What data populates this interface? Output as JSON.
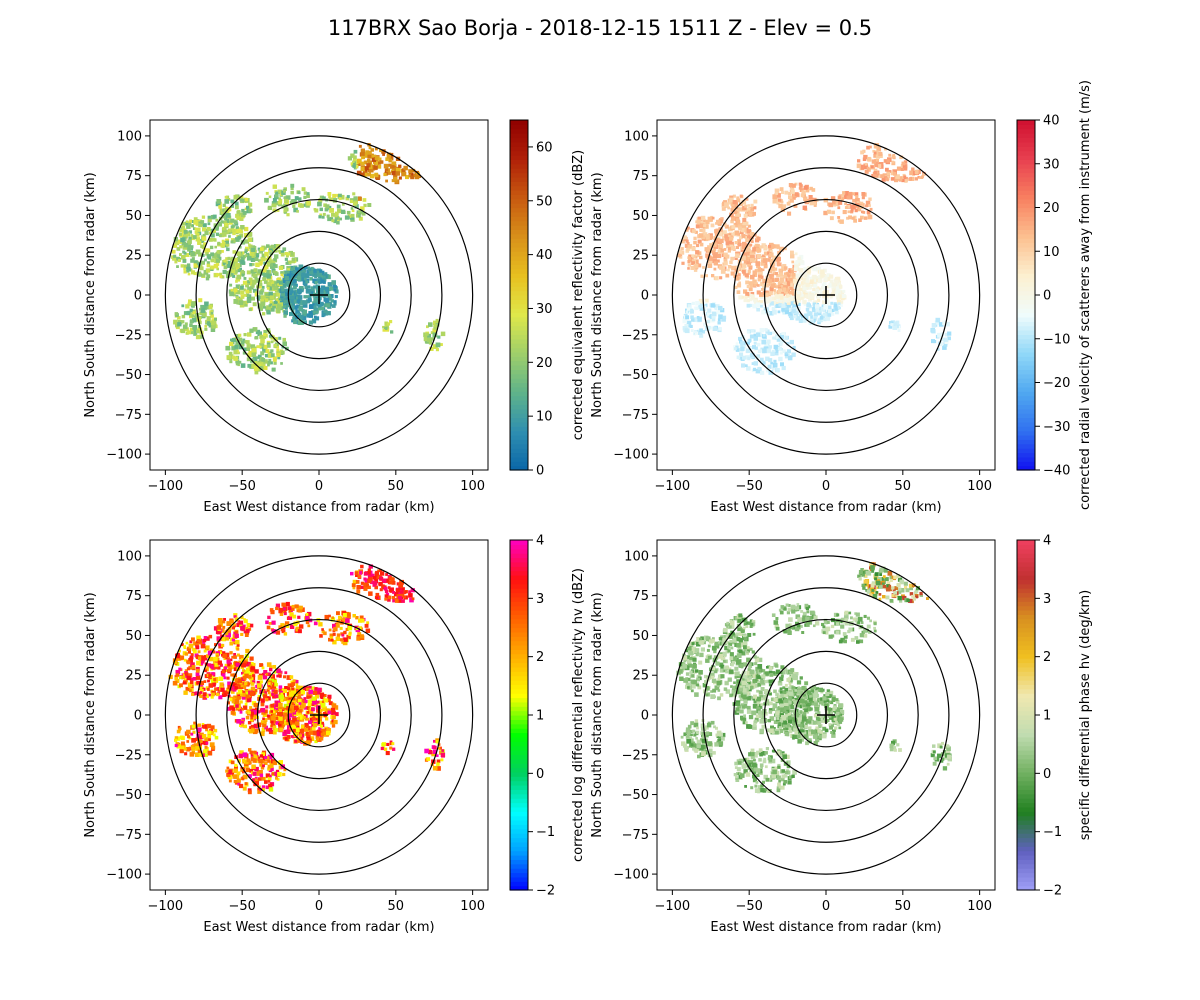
{
  "suptitle": "117BRX Sao Borja - 2018-12-15 1511 Z -  Elev = 0.5",
  "chart_data": [
    {
      "type": "heatmap",
      "panel": "top-left",
      "field": "reflectivity",
      "xlabel": "East West distance from radar (km)",
      "ylabel": "North South distance from radar (km)",
      "xlim": [
        -110,
        110
      ],
      "ylim": [
        -110,
        110
      ],
      "xticks": [
        -100,
        -50,
        0,
        50,
        100
      ],
      "yticks": [
        -100,
        -75,
        -50,
        -25,
        0,
        25,
        50,
        75,
        100
      ],
      "range_rings_km": [
        20,
        40,
        60,
        80,
        100
      ],
      "colorbar": {
        "label": "corrected equivalent reflectivity factor (dBZ)",
        "min": 0,
        "max": 65,
        "ticks": [
          0,
          10,
          20,
          30,
          40,
          50,
          60
        ],
        "stops": [
          "#0a66a8",
          "#2f8fb0",
          "#5fb38a",
          "#9fcf6a",
          "#dfe84a",
          "#e8c020",
          "#d8901a",
          "#c85a10",
          "#b02008",
          "#900000"
        ]
      }
    },
    {
      "type": "heatmap",
      "panel": "top-right",
      "field": "velocity",
      "xlabel": "East West distance from radar (km)",
      "ylabel": "North South distance from radar (km)",
      "xlim": [
        -110,
        110
      ],
      "ylim": [
        -110,
        110
      ],
      "xticks": [
        -100,
        -50,
        0,
        50,
        100
      ],
      "yticks": [
        -100,
        -75,
        -50,
        -25,
        0,
        25,
        50,
        75,
        100
      ],
      "range_rings_km": [
        20,
        40,
        60,
        80,
        100
      ],
      "colorbar": {
        "label": "corrected radial velocity of scatterers away from instrument (m/s)",
        "min": -40,
        "max": 40,
        "ticks": [
          -40,
          -30,
          -20,
          -10,
          0,
          10,
          20,
          30,
          40
        ],
        "stops": [
          "#1010f0",
          "#3070f0",
          "#50a8f0",
          "#90d8f8",
          "#f0fcfc",
          "#fcf0d0",
          "#fcc090",
          "#f88060",
          "#e84050",
          "#d01030"
        ]
      }
    },
    {
      "type": "heatmap",
      "panel": "bottom-left",
      "field": "differential_reflectivity",
      "xlabel": "East West distance from radar (km)",
      "ylabel": "North South distance from radar (km)",
      "xlim": [
        -110,
        110
      ],
      "ylim": [
        -110,
        110
      ],
      "xticks": [
        -100,
        -50,
        0,
        50,
        100
      ],
      "yticks": [
        -100,
        -75,
        -50,
        -25,
        0,
        25,
        50,
        75,
        100
      ],
      "range_rings_km": [
        20,
        40,
        60,
        80,
        100
      ],
      "colorbar": {
        "label": "corrected log differential reflectivity hv (dBZ)",
        "min": -2,
        "max": 4,
        "ticks": [
          -2,
          -1,
          0,
          1,
          2,
          3,
          4
        ],
        "stops": [
          "#0000ff",
          "#00a0ff",
          "#00ffff",
          "#00d060",
          "#00ff00",
          "#ffff00",
          "#ffb000",
          "#ff6000",
          "#ff1010",
          "#ff00c0"
        ]
      }
    },
    {
      "type": "heatmap",
      "panel": "bottom-right",
      "field": "specific_differential_phase",
      "xlabel": "East West distance from radar (km)",
      "ylabel": "North South distance from radar (km)",
      "xlim": [
        -110,
        110
      ],
      "ylim": [
        -110,
        110
      ],
      "xticks": [
        -100,
        -50,
        0,
        50,
        100
      ],
      "yticks": [
        -100,
        -75,
        -50,
        -25,
        0,
        25,
        50,
        75,
        100
      ],
      "range_rings_km": [
        20,
        40,
        60,
        80,
        100
      ],
      "colorbar": {
        "label": "specific differential phase hv (deg/km)",
        "min": -2,
        "max": 4,
        "ticks": [
          -2,
          -1,
          0,
          1,
          2,
          3,
          4
        ],
        "stops": [
          "#a0a0f8",
          "#6060c0",
          "#208020",
          "#70b060",
          "#c0dcb0",
          "#f0e8b0",
          "#f0c020",
          "#d89020",
          "#c03030",
          "#f04060"
        ]
      }
    }
  ]
}
